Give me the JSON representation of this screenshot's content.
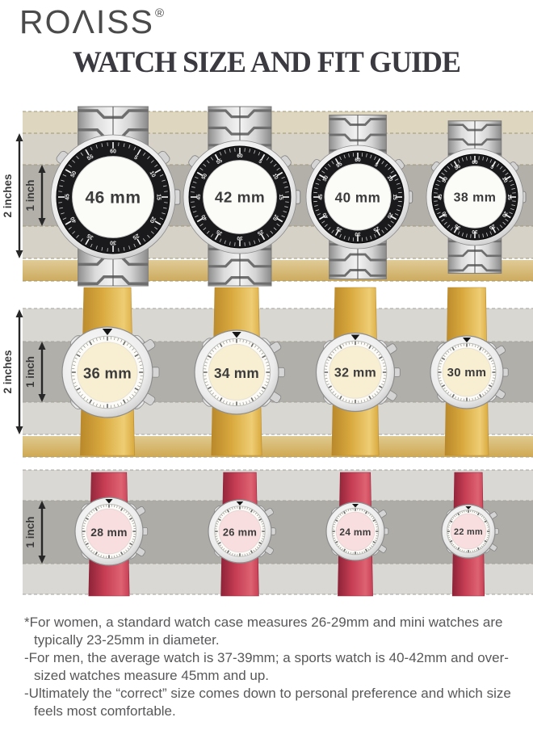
{
  "logo": {
    "text": "ROΛISS",
    "mark": "®"
  },
  "title": "WATCH SIZE AND FIT GUIDE",
  "rows": [
    {
      "name": "large-sport-watches",
      "strap_style": "steel-bracelet",
      "ruler_labels": {
        "outer": "2 inches",
        "inner": "1 inch"
      },
      "sizes": [
        "46 mm",
        "42 mm",
        "40 mm",
        "38 mm"
      ],
      "bezel_numbers": [
        "60",
        "5",
        "10",
        "15",
        "20",
        "25",
        "30",
        "35",
        "40",
        "45",
        "50",
        "55"
      ],
      "colors": {
        "strip_top": "#ded6bf",
        "band_2in": "#d6d2c8",
        "band_1in": "#b3b0a9",
        "strip_gold_light": "#e0cb97",
        "strip_gold_dark": "#cdab5e",
        "bezel": "#1a1a1d",
        "dial": "#fbfbf8",
        "dash": "#a09776"
      }
    },
    {
      "name": "mid-size-watches",
      "strap_style": "gold-fabric-strap",
      "ruler_labels": {
        "outer": "2 inches",
        "inner": "1 inch"
      },
      "sizes": [
        "36 mm",
        "34 mm",
        "32 mm",
        "30 mm"
      ],
      "colors": {
        "band_2in": "#d9d7d2",
        "band_1in": "#b1afaa",
        "strip_gold_light": "#dfc98f",
        "strip_gold_dark": "#cfa952",
        "strap_dark": "#b9882b",
        "strap": "#d9a93e",
        "strap_light": "#eecd74",
        "dial": "#f8efd3",
        "dash": "#a5a199"
      }
    },
    {
      "name": "small-womens-watches",
      "strap_style": "red-strap",
      "ruler_labels": {
        "inner": "1 inch"
      },
      "sizes": [
        "28 mm",
        "26 mm",
        "24 mm",
        "22 mm"
      ],
      "colors": {
        "band_2in": "#d9d8d4",
        "band_1in": "#aeaca7",
        "strap_dark": "#8d2338",
        "strap": "#c73e54",
        "strap_light": "#dd6372",
        "dial": "#f8dede",
        "dash": "#a5a199"
      }
    }
  ],
  "footnotes": [
    "*For women, a standard watch case measures 26-29mm and mini watches are typically 23-25mm in diameter.",
    "-For men, the average watch is 37-39mm; a sports watch is 40-42mm and over-sized watches measure 45mm and up.",
    "-Ultimately the “correct” size comes down to personal preference and which size feels most comfortable."
  ],
  "palette": {
    "title_color": "#3a3a40",
    "logo_color": "#4a4a4a",
    "note_color": "#58585a",
    "size_label_color": "#3b3b3b",
    "ruler_color": "#272727"
  }
}
